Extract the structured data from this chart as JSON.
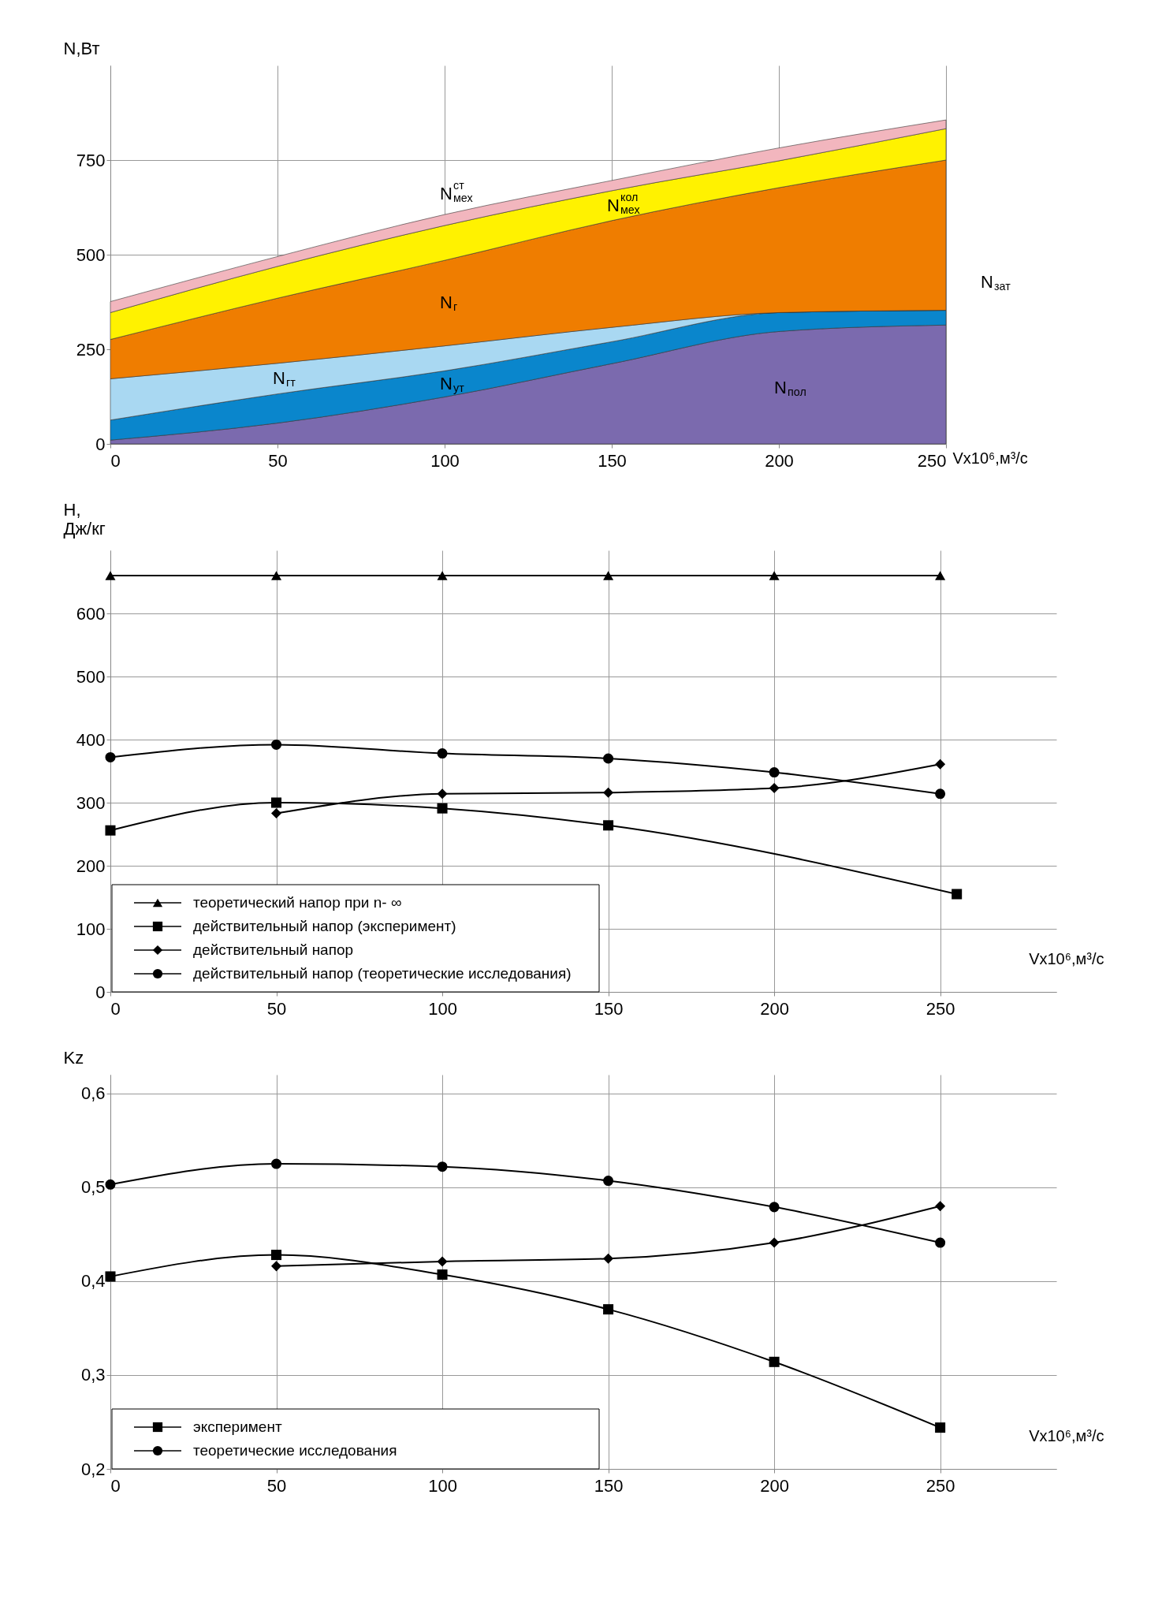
{
  "chart_data": [
    {
      "type": "area",
      "stacked": true,
      "ylabel": "N,Вт",
      "xlabel": "Vx10⁶,м³/с",
      "x": [
        0,
        50,
        100,
        150,
        200,
        250
      ],
      "xlim": [
        0,
        250
      ],
      "xticks": [
        0,
        50,
        100,
        150,
        200,
        250
      ],
      "ylim": [
        0,
        1000
      ],
      "yticks": [
        0,
        250,
        500,
        750
      ],
      "grid": true,
      "annotations": [
        "N$_{зат}$"
      ],
      "series": [
        {
          "name": "N$_{пол}$",
          "color": "#7b6aae",
          "values": [
            10,
            55,
            124,
            212,
            297,
            314
          ]
        },
        {
          "name": "N$_{ут}$",
          "color": "#0a86cc",
          "values": [
            53,
            77,
            69,
            58,
            50,
            39
          ]
        },
        {
          "name": "N$_{гт}$",
          "color": "#a9d8f2",
          "values": [
            109,
            81,
            66,
            38,
            0,
            0
          ]
        },
        {
          "name": "N$_{г}$",
          "color": "#ef7d00",
          "values": [
            104,
            172,
            226,
            282,
            330,
            397
          ]
        },
        {
          "name": "N$^{кол}$$_{мех}$",
          "color": "#fff200",
          "values": [
            71,
            84,
            92,
            79,
            71,
            83
          ]
        },
        {
          "name": "N$^{ст}$$_{мех}$",
          "color": "#f2b6be",
          "values": [
            29,
            26,
            29,
            27,
            34,
            23
          ]
        }
      ]
    },
    {
      "type": "line",
      "ylabel": "H,\nДж/кг",
      "xlabel": "Vx10⁶,м³/с",
      "x": [
        0,
        50,
        100,
        150,
        200,
        250
      ],
      "xlim": [
        0,
        285
      ],
      "xticks": [
        0,
        50,
        100,
        150,
        200,
        250
      ],
      "ylim": [
        0,
        700
      ],
      "yticks": [
        0,
        100,
        200,
        300,
        400,
        500,
        600
      ],
      "grid": true,
      "legend": "bottom left",
      "line_style": "solid",
      "series": [
        {
          "name": "теоретический напор при n- ∞",
          "color": "#000000",
          "marker": "triangle",
          "values": [
            660,
            660,
            660,
            660,
            660,
            660
          ]
        },
        {
          "name": "действительный напор (эксперимент)",
          "color": "#000000",
          "marker": "square",
          "x": [
            0,
            50,
            100,
            150,
            255
          ],
          "values": [
            256,
            300,
            291,
            264,
            155
          ]
        },
        {
          "name": "действительный напор",
          "color": "#000000",
          "marker": "diamond",
          "x": [
            50,
            100,
            150,
            200,
            250
          ],
          "values": [
            283,
            314,
            316,
            323,
            361
          ]
        },
        {
          "name": "действительный напор (теоретические исследования)",
          "color": "#000000",
          "marker": "circle",
          "values": [
            372,
            392,
            378,
            370,
            348,
            314
          ]
        }
      ]
    },
    {
      "type": "line",
      "ylabel": "Kz",
      "xlabel": "Vx10⁶,м³/с",
      "x": [
        0,
        50,
        100,
        150,
        200,
        250
      ],
      "xlim": [
        0,
        285
      ],
      "xticks": [
        0,
        50,
        100,
        150,
        200,
        250
      ],
      "ylim": [
        0.2,
        0.62
      ],
      "yticks": [
        {
          "value": 0.2,
          "label": "0,2"
        },
        {
          "value": 0.3,
          "label": "0,3"
        },
        {
          "value": 0.4,
          "label": "0,4"
        },
        {
          "value": 0.5,
          "label": "0,5"
        },
        {
          "value": 0.6,
          "label": "0,6"
        }
      ],
      "grid": true,
      "legend": "bottom left",
      "line_style": "solid",
      "series": [
        {
          "name": "эксперимент",
          "color": "#000000",
          "marker": "square",
          "values": [
            0.405,
            0.428,
            0.407,
            0.37,
            0.314,
            0.244
          ]
        },
        {
          "color": "#000000",
          "marker": "diamond",
          "x": [
            50,
            100,
            150,
            200,
            250
          ],
          "values": [
            0.416,
            0.421,
            0.424,
            0.441,
            0.48
          ]
        },
        {
          "name": "теоретические исследования",
          "color": "#000000",
          "marker": "circle",
          "values": [
            0.503,
            0.525,
            0.522,
            0.507,
            0.479,
            0.441
          ]
        }
      ]
    }
  ]
}
